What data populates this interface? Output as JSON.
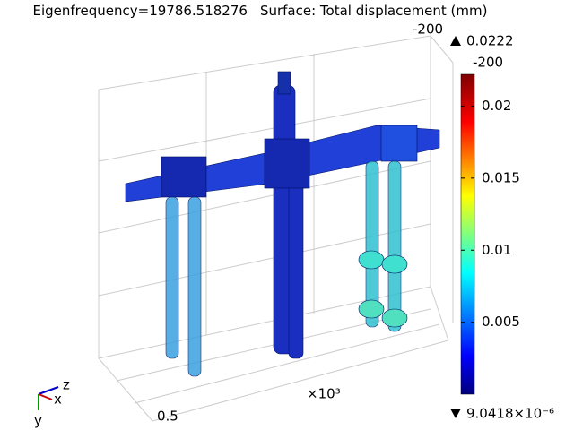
{
  "title": [
    "Eigenfrequency=19786.518276",
    "Surface: Total displacement (mm)"
  ],
  "colorbar": {
    "max": {
      "value": 0.0222,
      "label": "0.0222"
    },
    "min": {
      "value": 9.0418e-06,
      "label": "9.0418×10⁻⁶"
    },
    "ticks": [
      0.005,
      0.01,
      0.015,
      0.02
    ]
  },
  "axis_labels": [
    "-200",
    "-200",
    "0.5",
    "×10³"
  ],
  "triad": [
    "z",
    "x",
    "y"
  ]
}
